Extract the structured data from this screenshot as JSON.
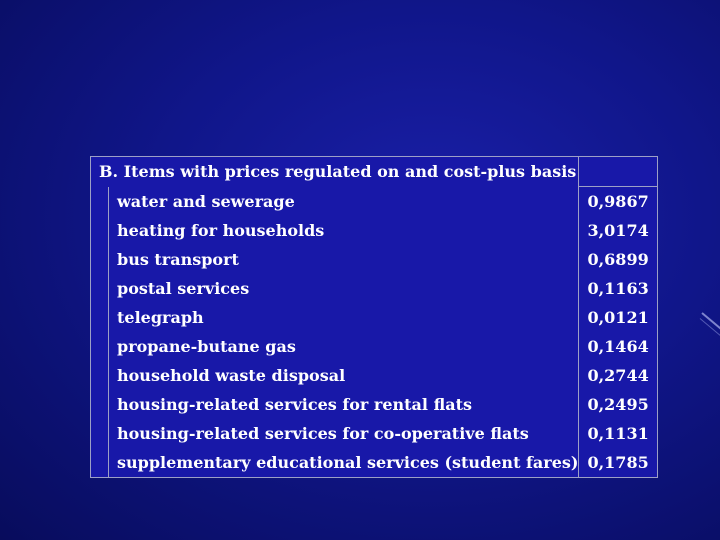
{
  "table": {
    "header": "B. Items with prices regulated on and cost-plus basis",
    "rows": [
      {
        "item": "water and sewerage",
        "value": "0,9867"
      },
      {
        "item": "heating for households",
        "value": "3,0174"
      },
      {
        "item": "bus transport",
        "value": "0,6899"
      },
      {
        "item": "postal services",
        "value": "0,1163"
      },
      {
        "item": "telegraph",
        "value": "0,0121"
      },
      {
        "item": "propane-butane gas",
        "value": "0,1464"
      },
      {
        "item": "household waste disposal",
        "value": "0,2744"
      },
      {
        "item": "housing-related services for rental flats",
        "value": "0,2495"
      },
      {
        "item": "housing-related services for co-operative flats",
        "value": "0,1131"
      },
      {
        "item": "supplementary educational services (student fares)",
        "value": "0,1785"
      }
    ]
  },
  "colors": {
    "background": "#10168a",
    "table_fill": "#1818a8",
    "border": "#9da0c6",
    "text": "#ffffff"
  }
}
